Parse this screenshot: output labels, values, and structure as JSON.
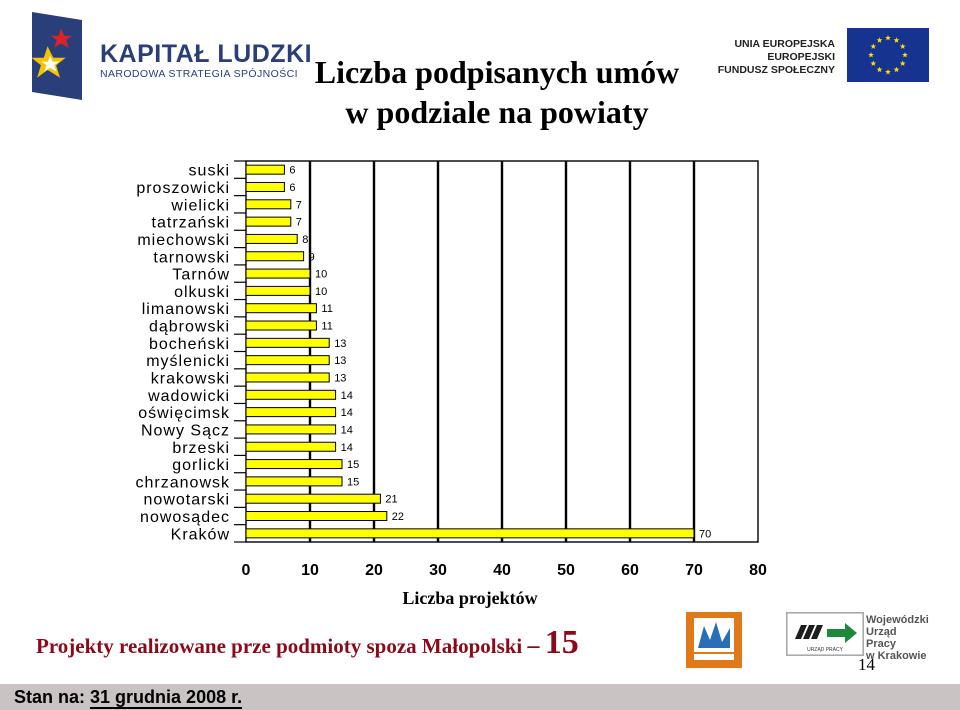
{
  "header": {
    "kl_title": "KAPITAŁ LUDZKI",
    "kl_subtitle": "NARODOWA STRATEGIA SPÓJNOŚCI",
    "title_line1": "Liczba podpisanych umów",
    "title_line2": "w podziale na powiaty",
    "eu_line1": "UNIA EUROPEJSKA",
    "eu_line2": "EUROPEJSKI",
    "eu_line3": "FUNDUSZ SPOŁECZNY"
  },
  "chart_data": {
    "type": "bar",
    "orientation": "horizontal",
    "categories": [
      "suski",
      "proszowicki",
      "wielicki",
      "tatrzański",
      "miechowski",
      "tarnowski",
      "Tarnów",
      "olkuski",
      "limanowski",
      "dąbrowski",
      "bocheński",
      "myślenicki",
      "krakowski",
      "wadowicki",
      "oświęcimsk",
      "Nowy Sącz",
      "brzeski",
      "gorlicki",
      "chrzanowsk",
      "nowotarski",
      "nowosądec",
      "Kraków"
    ],
    "values": [
      6,
      6,
      7,
      7,
      8,
      9,
      10,
      10,
      11,
      11,
      13,
      13,
      13,
      14,
      14,
      14,
      14,
      15,
      15,
      21,
      22,
      70
    ],
    "xlabel": "Liczba projektów",
    "xlim": [
      0,
      80
    ],
    "xticks": [
      0,
      10,
      20,
      30,
      40,
      50,
      60,
      70,
      80
    ],
    "grid": "vertical",
    "bar_color": "#ffff00",
    "data_labels": true
  },
  "footer": {
    "note_text": "Projekty realizowane prze podmioty spoza Małopolski",
    "note_dash": "–",
    "note_value": "15",
    "wup_line1": "Wojewódzki",
    "wup_line2": "Urząd",
    "wup_line3": "Pracy",
    "wup_line4": "w Krakowie",
    "wup_sign": "URZĄD PRACY",
    "page_number": "14",
    "status_label": "Stan na:",
    "status_date": "31 grudnia 2008 r."
  },
  "colors": {
    "kl_blue": "#2a3f7a",
    "eu_blue": "#16348f",
    "note_red": "#8b0a1a",
    "status_bg": "#c9c3c3"
  }
}
